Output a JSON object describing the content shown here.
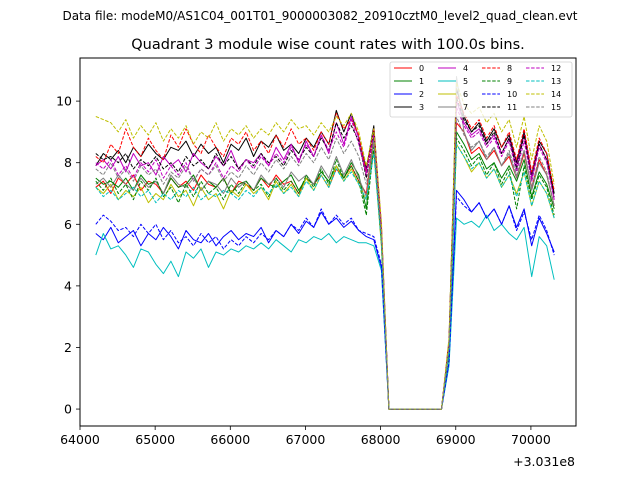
{
  "figure": {
    "suptitle": "Data file: modeM0/AS1C04_001T01_9000003082_20910cztM0_level2_quad_clean.evt",
    "title": "Quadrant 3 module wise count rates with 100.0s bins.",
    "x_offset_label": "+3.031e8"
  },
  "chart_data": {
    "type": "line",
    "title": "Quadrant 3 module wise count rates with 100.0s bins.",
    "xlabel": "",
    "ylabel": "",
    "x_offset": 303100000,
    "xlim": [
      64000,
      70600
    ],
    "ylim": [
      -0.55,
      11.4
    ],
    "xticks": [
      64000,
      65000,
      66000,
      67000,
      68000,
      69000,
      70000
    ],
    "yticks": [
      0,
      2,
      4,
      6,
      8,
      10
    ],
    "legend_position": "top-right",
    "legend_columns": 4,
    "x": [
      64210,
      64310,
      64410,
      64510,
      64610,
      64710,
      64810,
      64910,
      65010,
      65110,
      65210,
      65310,
      65410,
      65510,
      65610,
      65710,
      65810,
      65910,
      66010,
      66110,
      66210,
      66310,
      66410,
      66510,
      66610,
      66710,
      66810,
      66910,
      67010,
      67110,
      67210,
      67310,
      67410,
      67510,
      67610,
      67710,
      67810,
      67910,
      68010,
      68110,
      68210,
      68310,
      68410,
      68510,
      68610,
      68710,
      68810,
      68910,
      69010,
      69110,
      69210,
      69310,
      69410,
      69510,
      69610,
      69710,
      69810,
      69910,
      70010,
      70110,
      70210,
      70310
    ],
    "series": [
      {
        "name": "0",
        "color": "#ff0000",
        "dash": "solid",
        "values": [
          7.2,
          7.4,
          7.0,
          7.5,
          7.3,
          7.6,
          7.1,
          7.4,
          7.3,
          7.0,
          7.5,
          7.2,
          7.4,
          7.1,
          7.6,
          7.3,
          7.2,
          7.5,
          7.0,
          7.4,
          7.3,
          7.1,
          7.5,
          7.2,
          7.6,
          7.3,
          7.4,
          7.0,
          7.5,
          7.3,
          7.6,
          7.2,
          7.8,
          7.5,
          7.9,
          7.4,
          7.0,
          8.9,
          5.5,
          0.0,
          0.0,
          0.0,
          0.0,
          0.0,
          0.0,
          0.0,
          0.0,
          2.0,
          9.3,
          9.0,
          8.3,
          8.5,
          8.1,
          8.4,
          7.9,
          8.2,
          7.5,
          8.3,
          7.2,
          8.1,
          7.6,
          6.6
        ]
      },
      {
        "name": "1",
        "color": "#008000",
        "dash": "solid",
        "values": [
          7.5,
          7.3,
          7.4,
          7.2,
          7.5,
          7.1,
          7.6,
          7.3,
          7.4,
          7.0,
          7.5,
          7.2,
          7.3,
          7.6,
          7.1,
          7.4,
          7.2,
          7.5,
          7.0,
          7.3,
          7.4,
          7.1,
          7.5,
          7.3,
          7.2,
          7.4,
          7.6,
          7.1,
          7.5,
          7.3,
          7.7,
          7.4,
          7.9,
          7.5,
          8.0,
          7.6,
          6.5,
          8.8,
          5.6,
          0.0,
          0.0,
          0.0,
          0.0,
          0.0,
          0.0,
          0.0,
          0.0,
          1.9,
          9.0,
          8.6,
          8.1,
          8.3,
          7.8,
          8.0,
          7.5,
          7.9,
          7.4,
          8.1,
          6.9,
          7.7,
          7.3,
          6.5
        ]
      },
      {
        "name": "2",
        "color": "#0000ff",
        "dash": "solid",
        "values": [
          5.7,
          5.5,
          5.9,
          5.4,
          5.6,
          5.8,
          5.3,
          5.7,
          5.5,
          5.9,
          5.6,
          5.2,
          5.8,
          5.5,
          5.4,
          5.7,
          5.3,
          5.6,
          5.8,
          5.5,
          5.7,
          5.6,
          5.9,
          5.4,
          5.8,
          5.6,
          6.0,
          5.7,
          6.1,
          5.9,
          6.4,
          6.0,
          6.2,
          5.9,
          6.1,
          5.8,
          5.6,
          5.5,
          4.6,
          0.0,
          0.0,
          0.0,
          0.0,
          0.0,
          0.0,
          0.0,
          0.0,
          1.5,
          7.1,
          6.8,
          6.4,
          6.7,
          6.2,
          6.5,
          6.0,
          6.6,
          5.9,
          6.5,
          5.3,
          6.2,
          5.7,
          5.1
        ]
      },
      {
        "name": "3",
        "color": "#000000",
        "dash": "solid",
        "values": [
          7.9,
          8.3,
          8.1,
          8.4,
          8.0,
          8.5,
          8.2,
          8.6,
          8.3,
          8.1,
          8.5,
          8.4,
          8.7,
          8.2,
          8.6,
          8.3,
          8.5,
          8.0,
          8.6,
          8.4,
          8.8,
          8.2,
          8.7,
          8.5,
          8.9,
          8.4,
          8.6,
          8.3,
          8.8,
          8.5,
          9.0,
          8.6,
          9.7,
          9.0,
          9.6,
          8.8,
          7.8,
          9.2,
          5.9,
          0.0,
          0.0,
          0.0,
          0.0,
          0.0,
          0.0,
          0.0,
          0.0,
          2.2,
          10.4,
          9.5,
          9.0,
          9.3,
          8.7,
          9.1,
          8.5,
          8.9,
          8.0,
          9.0,
          7.6,
          8.7,
          8.3,
          7.0
        ]
      },
      {
        "name": "4",
        "color": "#bf00bf",
        "dash": "solid",
        "values": [
          7.9,
          8.1,
          7.8,
          8.2,
          7.7,
          8.3,
          7.9,
          8.0,
          7.6,
          8.2,
          7.9,
          8.1,
          7.7,
          8.3,
          8.0,
          7.8,
          8.2,
          7.9,
          8.4,
          7.8,
          8.1,
          8.0,
          8.3,
          7.9,
          8.5,
          8.1,
          8.6,
          8.0,
          8.7,
          8.2,
          8.9,
          8.3,
          9.3,
          8.6,
          9.5,
          8.8,
          7.7,
          9.1,
          6.0,
          0.0,
          0.0,
          0.0,
          0.0,
          0.0,
          0.0,
          0.0,
          0.0,
          2.1,
          10.0,
          9.3,
          8.9,
          9.1,
          8.6,
          8.9,
          8.3,
          8.8,
          7.9,
          8.9,
          7.5,
          8.6,
          8.1,
          6.8
        ]
      },
      {
        "name": "5",
        "color": "#00bfbf",
        "dash": "solid",
        "values": [
          5.0,
          5.7,
          5.2,
          5.3,
          5.0,
          4.6,
          5.2,
          5.1,
          4.7,
          4.4,
          4.8,
          4.3,
          5.1,
          4.9,
          5.2,
          4.6,
          5.1,
          5.0,
          5.2,
          5.1,
          5.3,
          5.2,
          5.4,
          5.2,
          5.5,
          5.3,
          5.1,
          5.5,
          5.4,
          5.6,
          5.5,
          5.7,
          5.4,
          5.6,
          5.5,
          5.4,
          5.4,
          5.3,
          4.5,
          0.0,
          0.0,
          0.0,
          0.0,
          0.0,
          0.0,
          0.0,
          0.0,
          1.4,
          6.2,
          6.0,
          6.1,
          5.9,
          6.3,
          5.8,
          6.0,
          5.7,
          5.5,
          5.9,
          4.3,
          5.6,
          5.3,
          4.2
        ]
      },
      {
        "name": "6",
        "color": "#bfbf00",
        "dash": "solid",
        "values": [
          7.2,
          7.0,
          7.3,
          6.8,
          7.1,
          6.9,
          7.2,
          6.7,
          7.0,
          6.8,
          7.3,
          6.9,
          7.1,
          6.6,
          7.2,
          6.8,
          7.0,
          6.5,
          7.1,
          6.9,
          7.3,
          7.0,
          7.2,
          6.8,
          7.4,
          7.0,
          7.3,
          6.9,
          7.5,
          7.1,
          7.6,
          7.2,
          7.9,
          7.4,
          7.8,
          7.3,
          6.8,
          8.4,
          5.3,
          0.0,
          0.0,
          0.0,
          0.0,
          0.0,
          0.0,
          0.0,
          0.0,
          1.9,
          8.6,
          8.2,
          7.7,
          8.0,
          7.5,
          7.8,
          7.2,
          7.6,
          7.0,
          7.7,
          6.6,
          7.4,
          7.0,
          6.2
        ]
      },
      {
        "name": "7",
        "color": "#808080",
        "dash": "solid",
        "values": [
          7.3,
          7.5,
          7.2,
          7.6,
          7.3,
          7.1,
          7.5,
          7.2,
          7.4,
          7.0,
          7.6,
          7.3,
          7.2,
          7.5,
          7.1,
          7.4,
          7.3,
          7.0,
          7.5,
          7.2,
          7.4,
          7.1,
          7.6,
          7.3,
          7.5,
          7.2,
          7.7,
          7.4,
          7.6,
          7.3,
          7.9,
          7.5,
          8.2,
          7.6,
          8.1,
          7.5,
          6.9,
          8.7,
          5.5,
          0.0,
          0.0,
          0.0,
          0.0,
          0.0,
          0.0,
          0.0,
          0.0,
          2.0,
          10.8,
          9.0,
          8.4,
          8.7,
          8.1,
          8.5,
          7.9,
          8.3,
          7.5,
          8.4,
          7.1,
          8.0,
          7.6,
          6.6
        ]
      },
      {
        "name": "8",
        "color": "#ff0000",
        "dash": "dashed",
        "values": [
          8.2,
          8.0,
          8.6,
          8.3,
          9.1,
          8.5,
          8.2,
          8.8,
          8.4,
          8.1,
          8.9,
          8.5,
          9.1,
          8.6,
          8.3,
          8.9,
          8.5,
          8.2,
          8.8,
          8.6,
          9.0,
          8.4,
          8.7,
          8.3,
          8.9,
          8.5,
          9.1,
          8.6,
          8.8,
          8.4,
          9.0,
          8.6,
          9.6,
          9.1,
          9.4,
          8.9,
          7.6,
          9.1,
          5.8,
          0.0,
          0.0,
          0.0,
          0.0,
          0.0,
          0.0,
          0.0,
          0.0,
          2.2,
          10.2,
          9.6,
          9.1,
          9.4,
          8.8,
          9.2,
          8.5,
          9.0,
          8.1,
          9.1,
          7.7,
          8.8,
          8.3,
          7.1
        ]
      },
      {
        "name": "9",
        "color": "#008000",
        "dash": "dashed",
        "values": [
          7.4,
          7.1,
          7.5,
          7.0,
          7.3,
          6.8,
          7.4,
          7.1,
          7.5,
          6.9,
          7.2,
          6.7,
          7.3,
          6.9,
          7.4,
          7.0,
          7.2,
          6.8,
          7.3,
          7.0,
          7.4,
          7.1,
          7.3,
          6.9,
          7.5,
          7.1,
          7.4,
          7.0,
          7.6,
          7.2,
          7.8,
          7.3,
          8.1,
          7.5,
          7.9,
          7.4,
          6.3,
          8.5,
          5.4,
          0.0,
          0.0,
          0.0,
          0.0,
          0.0,
          0.0,
          0.0,
          0.0,
          1.8,
          8.8,
          8.4,
          7.9,
          8.2,
          7.6,
          8.0,
          7.3,
          7.8,
          6.5,
          7.9,
          6.8,
          7.6,
          7.2,
          6.3
        ]
      },
      {
        "name": "10",
        "color": "#0000ff",
        "dash": "dashed",
        "values": [
          6.0,
          6.3,
          6.1,
          5.8,
          5.9,
          5.6,
          6.0,
          5.7,
          6.0,
          5.5,
          5.8,
          5.4,
          5.6,
          5.3,
          5.7,
          5.4,
          5.6,
          5.2,
          5.5,
          5.3,
          5.6,
          5.4,
          5.7,
          5.5,
          5.8,
          5.6,
          6.0,
          5.8,
          6.2,
          5.9,
          6.5,
          6.0,
          6.3,
          6.0,
          6.2,
          5.8,
          5.7,
          5.6,
          4.7,
          0.0,
          0.0,
          0.0,
          0.0,
          0.0,
          0.0,
          0.0,
          0.0,
          1.5,
          6.9,
          6.6,
          6.4,
          6.7,
          6.2,
          6.5,
          6.0,
          6.6,
          5.8,
          6.4,
          5.5,
          6.3,
          5.8,
          5.0
        ]
      },
      {
        "name": "11",
        "color": "#000000",
        "dash": "dashed",
        "values": [
          8.3,
          8.1,
          8.2,
          8.0,
          8.3,
          7.8,
          8.1,
          7.9,
          8.2,
          7.8,
          8.0,
          7.7,
          8.2,
          7.9,
          8.1,
          7.8,
          8.3,
          7.9,
          8.2,
          7.8,
          8.1,
          7.9,
          8.3,
          8.0,
          8.2,
          7.9,
          8.4,
          8.1,
          8.5,
          8.2,
          8.8,
          8.4,
          9.3,
          8.8,
          9.2,
          8.7,
          7.5,
          9.0,
          5.7,
          0.0,
          0.0,
          0.0,
          0.0,
          0.0,
          0.0,
          0.0,
          0.0,
          2.1,
          10.1,
          9.4,
          9.0,
          9.2,
          8.6,
          9.0,
          8.3,
          8.8,
          7.8,
          8.9,
          7.4,
          8.6,
          8.1,
          6.9
        ]
      },
      {
        "name": "12",
        "color": "#bf00bf",
        "dash": "dashed",
        "values": [
          8.0,
          7.8,
          8.1,
          7.6,
          7.9,
          7.5,
          8.0,
          7.7,
          8.1,
          7.5,
          7.9,
          7.6,
          8.0,
          7.4,
          7.8,
          7.6,
          8.0,
          7.5,
          7.9,
          7.7,
          8.1,
          7.8,
          8.2,
          7.9,
          8.3,
          8.0,
          8.5,
          8.1,
          8.6,
          8.2,
          8.9,
          8.4,
          9.0,
          8.5,
          9.4,
          8.6,
          7.6,
          8.9,
          5.9,
          0.0,
          0.0,
          0.0,
          0.0,
          0.0,
          0.0,
          0.0,
          0.0,
          2.1,
          9.8,
          9.2,
          8.8,
          9.0,
          8.5,
          8.8,
          8.2,
          8.7,
          7.7,
          8.7,
          7.4,
          8.5,
          8.0,
          6.8
        ]
      },
      {
        "name": "13",
        "color": "#00bfbf",
        "dash": "dashed",
        "values": [
          7.2,
          6.9,
          7.1,
          6.8,
          7.0,
          7.2,
          6.9,
          7.1,
          6.7,
          7.0,
          6.8,
          7.1,
          6.9,
          7.2,
          6.8,
          7.0,
          6.9,
          7.1,
          7.0,
          6.8,
          7.1,
          6.9,
          7.2,
          7.0,
          7.3,
          7.0,
          7.2,
          6.9,
          7.4,
          7.1,
          7.6,
          7.2,
          7.8,
          7.4,
          7.7,
          7.3,
          6.8,
          8.3,
          5.4,
          0.0,
          0.0,
          0.0,
          0.0,
          0.0,
          0.0,
          0.0,
          0.0,
          1.9,
          8.6,
          8.2,
          7.8,
          8.0,
          7.5,
          7.8,
          7.2,
          7.6,
          6.9,
          7.7,
          6.6,
          7.4,
          7.0,
          6.2
        ]
      },
      {
        "name": "14",
        "color": "#bfbf00",
        "dash": "dashed",
        "values": [
          9.5,
          9.4,
          9.3,
          9.0,
          9.4,
          8.8,
          9.2,
          8.9,
          9.3,
          8.7,
          9.1,
          8.8,
          9.2,
          8.6,
          9.0,
          8.8,
          9.3,
          8.7,
          9.1,
          8.9,
          9.2,
          8.8,
          9.1,
          8.9,
          9.3,
          9.0,
          9.4,
          9.1,
          9.2,
          8.9,
          9.3,
          9.0,
          9.5,
          9.2,
          9.6,
          9.0,
          7.9,
          9.1,
          6.1,
          0.0,
          0.0,
          0.0,
          0.0,
          0.0,
          0.0,
          0.0,
          0.0,
          2.3,
          10.6,
          9.9,
          9.6,
          9.8,
          9.3,
          9.6,
          9.0,
          9.4,
          8.5,
          9.5,
          8.1,
          9.2,
          8.7,
          7.3
        ]
      },
      {
        "name": "15",
        "color": "#808080",
        "dash": "dashed",
        "values": [
          7.8,
          7.6,
          8.0,
          7.5,
          7.8,
          7.4,
          7.9,
          7.6,
          7.8,
          7.3,
          7.7,
          7.5,
          7.9,
          7.4,
          7.8,
          7.6,
          7.9,
          7.4,
          7.7,
          7.5,
          7.9,
          7.6,
          8.0,
          7.7,
          8.1,
          7.8,
          8.2,
          7.9,
          8.3,
          8.0,
          8.5,
          8.1,
          8.8,
          8.3,
          8.7,
          8.2,
          7.3,
          8.7,
          5.6,
          0.0,
          0.0,
          0.0,
          0.0,
          0.0,
          0.0,
          0.0,
          0.0,
          2.0,
          9.5,
          8.9,
          8.5,
          8.7,
          8.2,
          8.5,
          7.9,
          8.4,
          7.6,
          8.4,
          7.2,
          8.2,
          7.7,
          6.6
        ]
      }
    ]
  }
}
